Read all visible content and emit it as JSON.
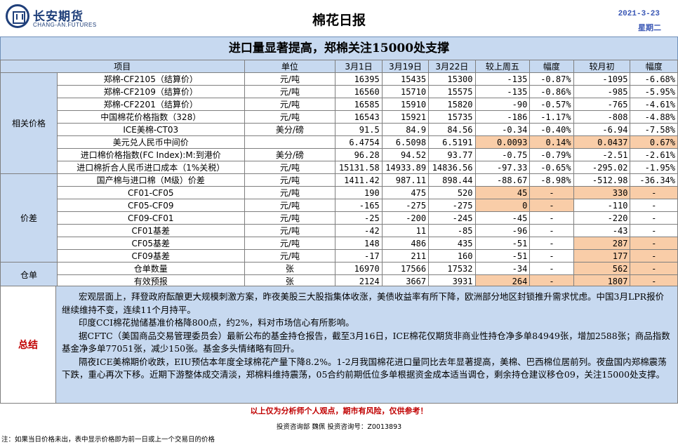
{
  "header": {
    "logo_cn": "长安期货",
    "logo_en": "CHANG-AN.FUTURES",
    "report_title": "棉花日报",
    "date": "2021-3-23",
    "weekday": "星期二"
  },
  "headline": "进口量显著提高，郑棉关注15000处支撑",
  "table": {
    "columns": [
      "项目",
      "单位",
      "3月1日",
      "3月19日",
      "3月22日",
      "较上周五",
      "幅度",
      "较月初",
      "幅度"
    ],
    "sections": [
      {
        "category": "相关价格",
        "rows": [
          {
            "item": "郑棉-CF2105（结算价）",
            "unit": "元/吨",
            "d1": "16395",
            "d2": "15435",
            "d3": "15300",
            "wk": "-135",
            "wkp": "-0.87%",
            "mo": "-1095",
            "mop": "-6.68%"
          },
          {
            "item": "郑棉-CF2109（结算价）",
            "unit": "元/吨",
            "d1": "16560",
            "d2": "15710",
            "d3": "15575",
            "wk": "-135",
            "wkp": "-0.86%",
            "mo": "-985",
            "mop": "-5.95%"
          },
          {
            "item": "郑棉-CF2201（结算价）",
            "unit": "元/吨",
            "d1": "16585",
            "d2": "15910",
            "d3": "15820",
            "wk": "-90",
            "wkp": "-0.57%",
            "mo": "-765",
            "mop": "-4.61%"
          },
          {
            "item": "中国棉花价格指数（328）",
            "unit": "元/吨",
            "d1": "16543",
            "d2": "15921",
            "d3": "15735",
            "wk": "-186",
            "wkp": "-1.17%",
            "mo": "-808",
            "mop": "-4.88%"
          },
          {
            "item": "ICE美棉-CT03",
            "unit": "美分/磅",
            "d1": "91.5",
            "d2": "84.9",
            "d3": "84.56",
            "wk": "-0.34",
            "wkp": "-0.40%",
            "mo": "-6.94",
            "mop": "-7.58%"
          },
          {
            "item": "美元兑人民币中间价",
            "unit": "",
            "d1": "6.4754",
            "d2": "6.5098",
            "d3": "6.5191",
            "wk": "0.0093",
            "wkp": "0.14%",
            "mo": "0.0437",
            "mop": "0.67%"
          },
          {
            "item": "进口棉价格指数(FC Index):M:到港价",
            "unit": "美分/磅",
            "d1": "96.28",
            "d2": "94.52",
            "d3": "93.77",
            "wk": "-0.75",
            "wkp": "-0.79%",
            "mo": "-2.51",
            "mop": "-2.61%"
          },
          {
            "item": "进口棉折合人民币进口成本（1%关税）",
            "unit": "元/吨",
            "d1": "15131.58",
            "d2": "14933.89",
            "d3": "14836.56",
            "wk": "-97.33",
            "wkp": "-0.65%",
            "mo": "-295.02",
            "mop": "-1.95%"
          }
        ]
      },
      {
        "category": "价差",
        "rows": [
          {
            "item": "国产棉与进口棉（M级）价差",
            "unit": "元/吨",
            "d1": "1411.42",
            "d2": "987.11",
            "d3": "898.44",
            "wk": "-88.67",
            "wkp": "-8.98%",
            "mo": "-512.98",
            "mop": "-36.34%"
          },
          {
            "item": "CF01-CF05",
            "unit": "元/吨",
            "d1": "190",
            "d2": "475",
            "d3": "520",
            "wk": "45",
            "wkp": "-",
            "mo": "330",
            "mop": "-"
          },
          {
            "item": "CF05-CF09",
            "unit": "元/吨",
            "d1": "-165",
            "d2": "-275",
            "d3": "-275",
            "wk": "0",
            "wkp": "-",
            "mo": "-110",
            "mop": "-"
          },
          {
            "item": "CF09-CF01",
            "unit": "元/吨",
            "d1": "-25",
            "d2": "-200",
            "d3": "-245",
            "wk": "-45",
            "wkp": "-",
            "mo": "-220",
            "mop": "-"
          },
          {
            "item": "CF01基差",
            "unit": "元/吨",
            "d1": "-42",
            "d2": "11",
            "d3": "-85",
            "wk": "-96",
            "wkp": "-",
            "mo": "-43",
            "mop": "-"
          },
          {
            "item": "CF05基差",
            "unit": "元/吨",
            "d1": "148",
            "d2": "486",
            "d3": "435",
            "wk": "-51",
            "wkp": "-",
            "mo": "287",
            "mop": "-"
          },
          {
            "item": "CF09基差",
            "unit": "元/吨",
            "d1": "-17",
            "d2": "211",
            "d3": "160",
            "wk": "-51",
            "wkp": "-",
            "mo": "177",
            "mop": "-"
          }
        ]
      },
      {
        "category": "仓单",
        "rows": [
          {
            "item": "仓单数量",
            "unit": "张",
            "d1": "16970",
            "d2": "17566",
            "d3": "17532",
            "wk": "-34",
            "wkp": "-",
            "mo": "562",
            "mop": "-"
          },
          {
            "item": "有效预报",
            "unit": "张",
            "d1": "2124",
            "d2": "3667",
            "d3": "3931",
            "wk": "264",
            "wkp": "-",
            "mo": "1807",
            "mop": "-"
          }
        ]
      }
    ]
  },
  "summary": {
    "label": "总结",
    "paragraphs": [
      "宏观层面上，拜登政府酝酿更大规模刺激方案，昨夜美股三大股指集体收涨，美债收益率有所下降，欧洲部分地区封锁推升需求忧虑。中国3月LPR报价继续维持不变，连续11个月持平。",
      "印度CCI棉花抛储基准价格降800点，约2%，料对市场信心有所影响。",
      "据CFTC（美国商品交易管理委员会）最新公布的基金持仓报告，截至3月16日，ICE棉花仅期货非商业性持仓净多单84949张，增加2588张；商品指数基金净多单77051张，减少150张。基金多头情绪略有回升。",
      "隔夜ICE美棉期价收跌，EIU预估本年度全球棉花产量下降8.2%。1-2月我国棉花进口量同比去年显著提高，美棉、巴西棉位居前列。夜盘国内郑棉震荡下跌，重心再次下移。近期下游整体成交清淡，郑棉料维持震荡，05合约前期低位多单根据资金成本适当调仓，剩余持仓建议移仓09，关注15000处支撑。"
    ]
  },
  "footer": {
    "disclaimer": "以上仅为分析师个人观点，期市有风险，仅供参考！",
    "advisor": "投资咨询部  魏佩    投资咨询号：Z0013893",
    "note": "注：如果当日价格未出，表中显示价格即为前一日或上一个交易日的价格"
  },
  "colors": {
    "header_fill": "#c7d9f0",
    "highlight_fill": "#f9cda8",
    "accent_red": "#c00000",
    "accent_blue": "#3a57b5"
  }
}
